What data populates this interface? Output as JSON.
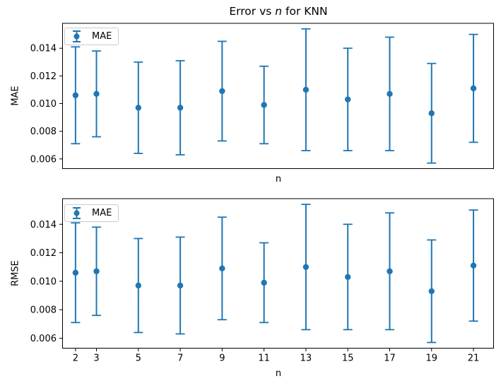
{
  "figure": {
    "title": {
      "prefix": "Error vs ",
      "variable": "n",
      "suffix": " for KNN"
    },
    "background_color": "#ffffff",
    "accent_color": "#1f77b4",
    "text_color": "#000000",
    "spine_color": "#000000"
  },
  "chart_data": [
    {
      "type": "errorbar",
      "panel": "top",
      "ylabel": "MAE",
      "xlabel": "n",
      "legend": {
        "position": "upper left",
        "entries": [
          "MAE"
        ]
      },
      "x": [
        2,
        3,
        5,
        7,
        9,
        11,
        13,
        15,
        17,
        19,
        21
      ],
      "y": [
        0.0106,
        0.0107,
        0.0097,
        0.0097,
        0.0109,
        0.0099,
        0.011,
        0.0103,
        0.0107,
        0.0093,
        0.0111
      ],
      "yerr": [
        0.0035,
        0.0031,
        0.0033,
        0.0034,
        0.0036,
        0.0028,
        0.0044,
        0.0037,
        0.0041,
        0.0036,
        0.0039
      ],
      "xlim": [
        1.38,
        21.96
      ],
      "ylim": [
        0.0053,
        0.0158
      ],
      "yticks": {
        "values": [
          0.014,
          0.012,
          0.01,
          0.008,
          0.006
        ],
        "labels": [
          "0.014",
          "0.012",
          "0.010",
          "0.008",
          "0.006"
        ]
      },
      "xticks": {
        "values": [],
        "labels": []
      },
      "grid": false,
      "marker": "circle"
    },
    {
      "type": "errorbar",
      "panel": "bottom",
      "ylabel": "RMSE",
      "xlabel": "n",
      "legend": {
        "position": "upper left",
        "entries": [
          "MAE"
        ]
      },
      "x": [
        2,
        3,
        5,
        7,
        9,
        11,
        13,
        15,
        17,
        19,
        21
      ],
      "y": [
        0.0106,
        0.0107,
        0.0097,
        0.0097,
        0.0109,
        0.0099,
        0.011,
        0.0103,
        0.0107,
        0.0093,
        0.0111
      ],
      "yerr": [
        0.0035,
        0.0031,
        0.0033,
        0.0034,
        0.0036,
        0.0028,
        0.0044,
        0.0037,
        0.0041,
        0.0036,
        0.0039
      ],
      "xlim": [
        1.38,
        21.96
      ],
      "ylim": [
        0.0053,
        0.0158
      ],
      "yticks": {
        "values": [
          0.014,
          0.012,
          0.01,
          0.008,
          0.006
        ],
        "labels": [
          "0.014",
          "0.012",
          "0.010",
          "0.008",
          "0.006"
        ]
      },
      "xticks": {
        "values": [
          2,
          3,
          5,
          7,
          9,
          11,
          13,
          15,
          17,
          19,
          21
        ],
        "labels": [
          "2",
          "3",
          "5",
          "7",
          "9",
          "11",
          "13",
          "15",
          "17",
          "19",
          "21"
        ]
      },
      "grid": false,
      "marker": "circle"
    }
  ]
}
